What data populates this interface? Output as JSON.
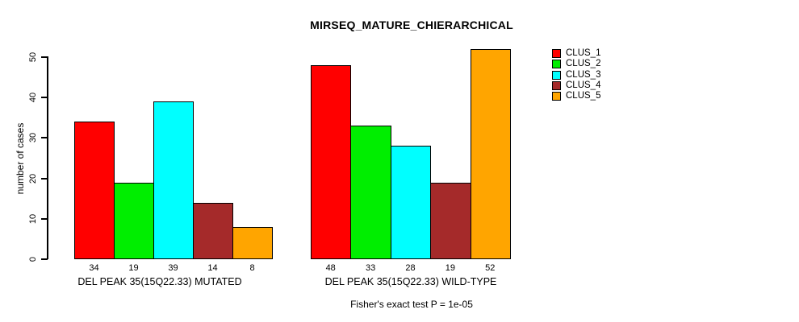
{
  "chart_data": {
    "type": "bar",
    "title": "MIRSEQ_MATURE_CHIERARCHICAL",
    "ylabel": "number of cases",
    "ylim": [
      0,
      50
    ],
    "yticks": [
      0,
      10,
      20,
      30,
      40,
      50
    ],
    "grid": false,
    "legend_position": "top-right",
    "legend": [
      {
        "label": "CLUS_1",
        "color": "#FF0000"
      },
      {
        "label": "CLUS_2",
        "color": "#00EE00"
      },
      {
        "label": "CLUS_3",
        "color": "#00FFFF"
      },
      {
        "label": "CLUS_4",
        "color": "#A52A2A"
      },
      {
        "label": "CLUS_5",
        "color": "#FFA500"
      }
    ],
    "groups": [
      {
        "label": "DEL PEAK 35(15Q22.33) MUTATED",
        "values": [
          34,
          19,
          39,
          14,
          8
        ]
      },
      {
        "label": "DEL PEAK 35(15Q22.33) WILD-TYPE",
        "values": [
          48,
          33,
          28,
          19,
          52
        ]
      }
    ],
    "annotation": "Fisher's exact test P = 1e-05"
  }
}
